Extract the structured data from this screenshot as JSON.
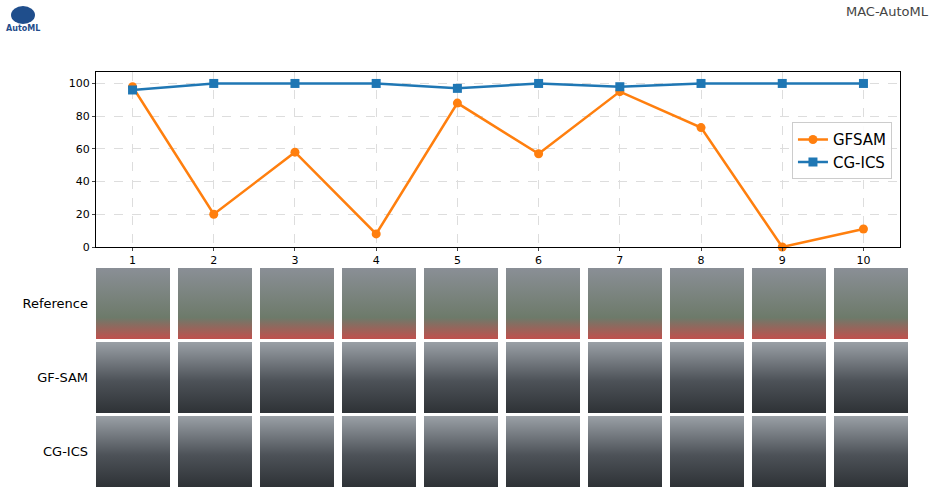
{
  "header": {
    "brand": "MAC-AutoML",
    "logo_text": "AutoML"
  },
  "image_rows": [
    "Reference",
    "GF-SAM",
    "CG-ICS"
  ],
  "chart_data": {
    "type": "line",
    "x": [
      1,
      2,
      3,
      4,
      5,
      6,
      7,
      8,
      9,
      10
    ],
    "series": [
      {
        "name": "GFSAM",
        "color": "#ff7f0e",
        "marker": "circle",
        "values": [
          98,
          20,
          58,
          8,
          88,
          57,
          95,
          73,
          0,
          11
        ]
      },
      {
        "name": "CG-ICS",
        "color": "#1f77b4",
        "marker": "square",
        "values": [
          96,
          100,
          100,
          100,
          97,
          100,
          98,
          100,
          100,
          100
        ]
      }
    ],
    "xlim": [
      0.55,
      10.45
    ],
    "xticks": [
      1,
      2,
      3,
      4,
      5,
      6,
      7,
      8,
      9,
      10
    ],
    "ylim": [
      0,
      107
    ],
    "yticks": [
      0,
      20,
      40,
      60,
      80,
      100
    ],
    "grid": true,
    "legend": "right"
  }
}
